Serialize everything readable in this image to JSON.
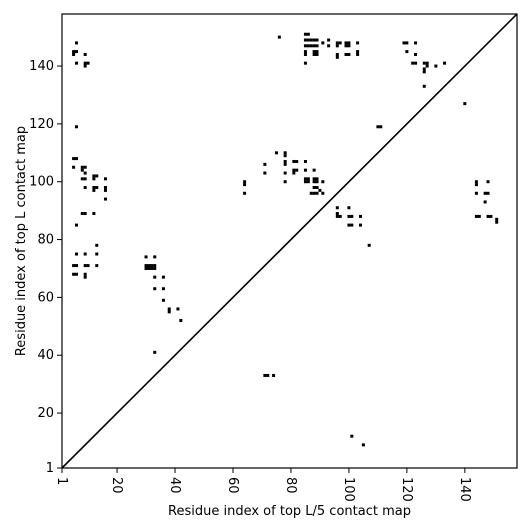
{
  "chart_data": {
    "type": "scatter",
    "xlabel": "Residue index of top L/5 contact map",
    "ylabel": "Residue index of top L contact map",
    "xlim": [
      1,
      158
    ],
    "ylim": [
      1,
      158
    ],
    "x_ticks": [
      1,
      20,
      40,
      60,
      80,
      100,
      120,
      140
    ],
    "y_ticks": [
      1,
      20,
      40,
      60,
      80,
      100,
      120,
      140
    ],
    "grid": false,
    "diagonal_line": true,
    "marker": "square",
    "color": "#000000",
    "upper_triangle_points": [
      [
        5,
        145
      ],
      [
        5,
        144
      ],
      [
        6,
        148
      ],
      [
        6,
        145
      ],
      [
        6,
        141
      ],
      [
        9,
        144
      ],
      [
        9,
        141
      ],
      [
        9,
        140
      ],
      [
        10,
        141
      ],
      [
        6,
        119
      ],
      [
        5,
        108
      ],
      [
        6,
        108
      ],
      [
        5,
        105
      ],
      [
        8,
        105
      ],
      [
        9,
        105
      ],
      [
        8,
        104
      ],
      [
        9,
        103
      ],
      [
        8,
        101
      ],
      [
        9,
        101
      ],
      [
        12,
        102
      ],
      [
        12,
        101
      ],
      [
        13,
        102
      ],
      [
        16,
        101
      ],
      [
        9,
        98
      ],
      [
        12,
        98
      ],
      [
        13,
        98
      ],
      [
        12,
        97
      ],
      [
        16,
        98
      ],
      [
        16,
        97
      ],
      [
        16,
        94
      ],
      [
        8,
        89
      ],
      [
        9,
        89
      ],
      [
        12,
        89
      ],
      [
        6,
        85
      ],
      [
        6,
        75
      ],
      [
        9,
        75
      ],
      [
        13,
        78
      ],
      [
        13,
        75
      ],
      [
        5,
        71
      ],
      [
        6,
        71
      ],
      [
        9,
        71
      ],
      [
        10,
        71
      ],
      [
        13,
        71
      ],
      [
        5,
        68
      ],
      [
        6,
        68
      ],
      [
        9,
        68
      ],
      [
        9,
        67
      ],
      [
        30,
        74
      ],
      [
        33,
        74
      ],
      [
        30,
        71
      ],
      [
        31,
        71
      ],
      [
        32,
        71
      ],
      [
        33,
        71
      ],
      [
        30,
        70
      ],
      [
        31,
        70
      ],
      [
        32,
        70
      ],
      [
        33,
        70
      ],
      [
        33,
        67
      ],
      [
        36,
        67
      ],
      [
        33,
        63
      ],
      [
        36,
        63
      ],
      [
        36,
        59
      ],
      [
        38,
        56
      ],
      [
        38,
        55
      ],
      [
        41,
        56
      ],
      [
        42,
        52
      ],
      [
        33,
        41
      ],
      [
        76,
        150
      ],
      [
        85,
        151
      ],
      [
        86,
        151
      ],
      [
        85,
        149
      ],
      [
        86,
        149
      ],
      [
        87,
        149
      ],
      [
        88,
        149
      ],
      [
        89,
        149
      ],
      [
        91,
        148
      ],
      [
        93,
        149
      ],
      [
        93,
        147
      ],
      [
        96,
        148
      ],
      [
        97,
        148
      ],
      [
        99,
        148
      ],
      [
        100,
        148
      ],
      [
        103,
        148
      ],
      [
        85,
        147
      ],
      [
        86,
        147
      ],
      [
        87,
        147
      ],
      [
        88,
        147
      ],
      [
        89,
        147
      ],
      [
        96,
        147
      ],
      [
        99,
        147
      ],
      [
        100,
        147
      ],
      [
        85,
        145
      ],
      [
        88,
        145
      ],
      [
        89,
        145
      ],
      [
        85,
        144
      ],
      [
        88,
        144
      ],
      [
        89,
        144
      ],
      [
        96,
        144
      ],
      [
        99,
        144
      ],
      [
        100,
        144
      ],
      [
        103,
        145
      ],
      [
        103,
        144
      ],
      [
        96,
        143
      ],
      [
        85,
        141
      ],
      [
        119,
        148
      ],
      [
        120,
        148
      ],
      [
        123,
        148
      ],
      [
        120,
        145
      ],
      [
        123,
        144
      ],
      [
        122,
        141
      ],
      [
        123,
        141
      ],
      [
        126,
        141
      ],
      [
        127,
        141
      ],
      [
        127,
        140
      ],
      [
        126,
        139
      ],
      [
        130,
        140
      ],
      [
        133,
        141
      ],
      [
        126,
        138
      ],
      [
        126,
        133
      ],
      [
        140,
        127
      ],
      [
        110,
        119
      ],
      [
        111,
        119
      ],
      [
        75,
        110
      ],
      [
        78,
        110
      ],
      [
        78,
        109
      ],
      [
        78,
        107
      ],
      [
        78,
        106
      ],
      [
        81,
        107
      ],
      [
        82,
        107
      ],
      [
        85,
        107
      ],
      [
        85,
        104
      ],
      [
        88,
        104
      ],
      [
        81,
        104
      ],
      [
        82,
        104
      ],
      [
        81,
        103
      ],
      [
        78,
        103
      ],
      [
        71,
        106
      ],
      [
        71,
        103
      ],
      [
        64,
        100
      ],
      [
        64,
        99
      ],
      [
        64,
        96
      ],
      [
        78,
        100
      ],
      [
        85,
        101
      ],
      [
        86,
        101
      ],
      [
        88,
        101
      ],
      [
        89,
        101
      ],
      [
        91,
        100
      ],
      [
        85,
        100
      ],
      [
        86,
        100
      ],
      [
        88,
        100
      ],
      [
        89,
        100
      ],
      [
        88,
        98
      ],
      [
        89,
        98
      ],
      [
        90,
        97
      ],
      [
        87,
        96
      ],
      [
        88,
        96
      ],
      [
        89,
        96
      ],
      [
        91,
        96
      ],
      [
        96,
        91
      ],
      [
        100,
        91
      ],
      [
        96,
        89
      ],
      [
        96,
        88
      ],
      [
        97,
        88
      ],
      [
        100,
        88
      ],
      [
        101,
        88
      ],
      [
        104,
        88
      ],
      [
        100,
        85
      ],
      [
        101,
        85
      ],
      [
        104,
        85
      ],
      [
        107,
        78
      ],
      [
        144,
        100
      ],
      [
        144,
        99
      ],
      [
        148,
        100
      ],
      [
        144,
        96
      ],
      [
        147,
        96
      ],
      [
        148,
        96
      ],
      [
        144,
        88
      ],
      [
        145,
        88
      ],
      [
        148,
        88
      ],
      [
        149,
        88
      ],
      [
        151,
        87
      ],
      [
        151,
        86
      ],
      [
        147,
        93
      ]
    ],
    "lower_triangle_points": [
      [
        71,
        33
      ],
      [
        72,
        33
      ],
      [
        74,
        33
      ],
      [
        101,
        12
      ],
      [
        105,
        9
      ]
    ]
  }
}
